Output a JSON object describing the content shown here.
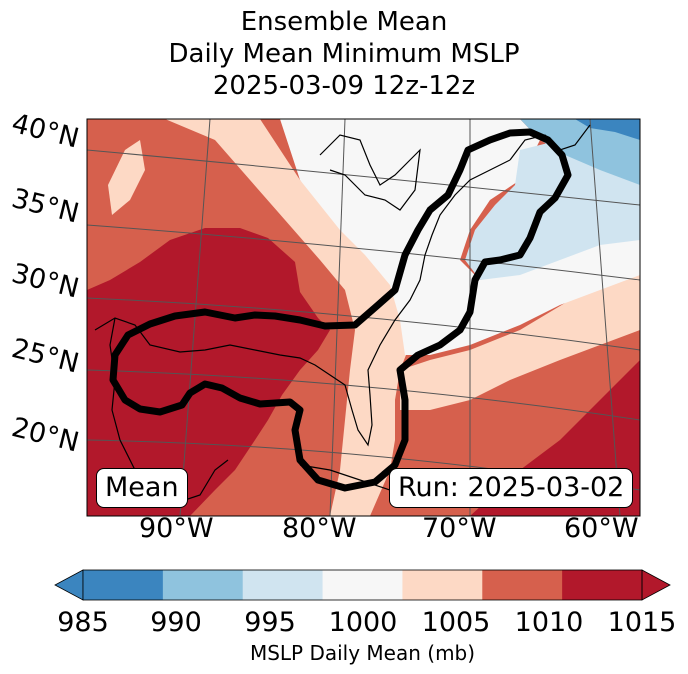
{
  "title": {
    "line1": "Ensemble Mean",
    "line2": "Daily Mean Minimum MSLP",
    "line3": "2025-03-09 12z-12z"
  },
  "map": {
    "lat_labels": [
      "40°N",
      "35°N",
      "30°N",
      "25°N",
      "20°N"
    ],
    "lon_labels": [
      "90°W",
      "80°W",
      "70°W",
      "60°W"
    ],
    "mean_box": "Mean",
    "run_box": "Run: 2025-03-02",
    "contour_color": "#000000"
  },
  "colorbar": {
    "ticks": [
      "985",
      "990",
      "995",
      "1000",
      "1005",
      "1010",
      "1015"
    ],
    "colors": [
      "#3b85bf",
      "#8fc3de",
      "#d0e4f0",
      "#f7f7f7",
      "#fdd9c5",
      "#d6604d",
      "#b2182b"
    ],
    "label": "MSLP Daily Mean (mb)"
  },
  "fill_colors": {
    "dark_red": "#b2182b",
    "red": "#d6604d",
    "peach": "#fdd9c5",
    "white": "#f7f7f7",
    "light_blue": "#d0e4f0",
    "blue": "#8fc3de",
    "dark_blue": "#3b85bf"
  }
}
